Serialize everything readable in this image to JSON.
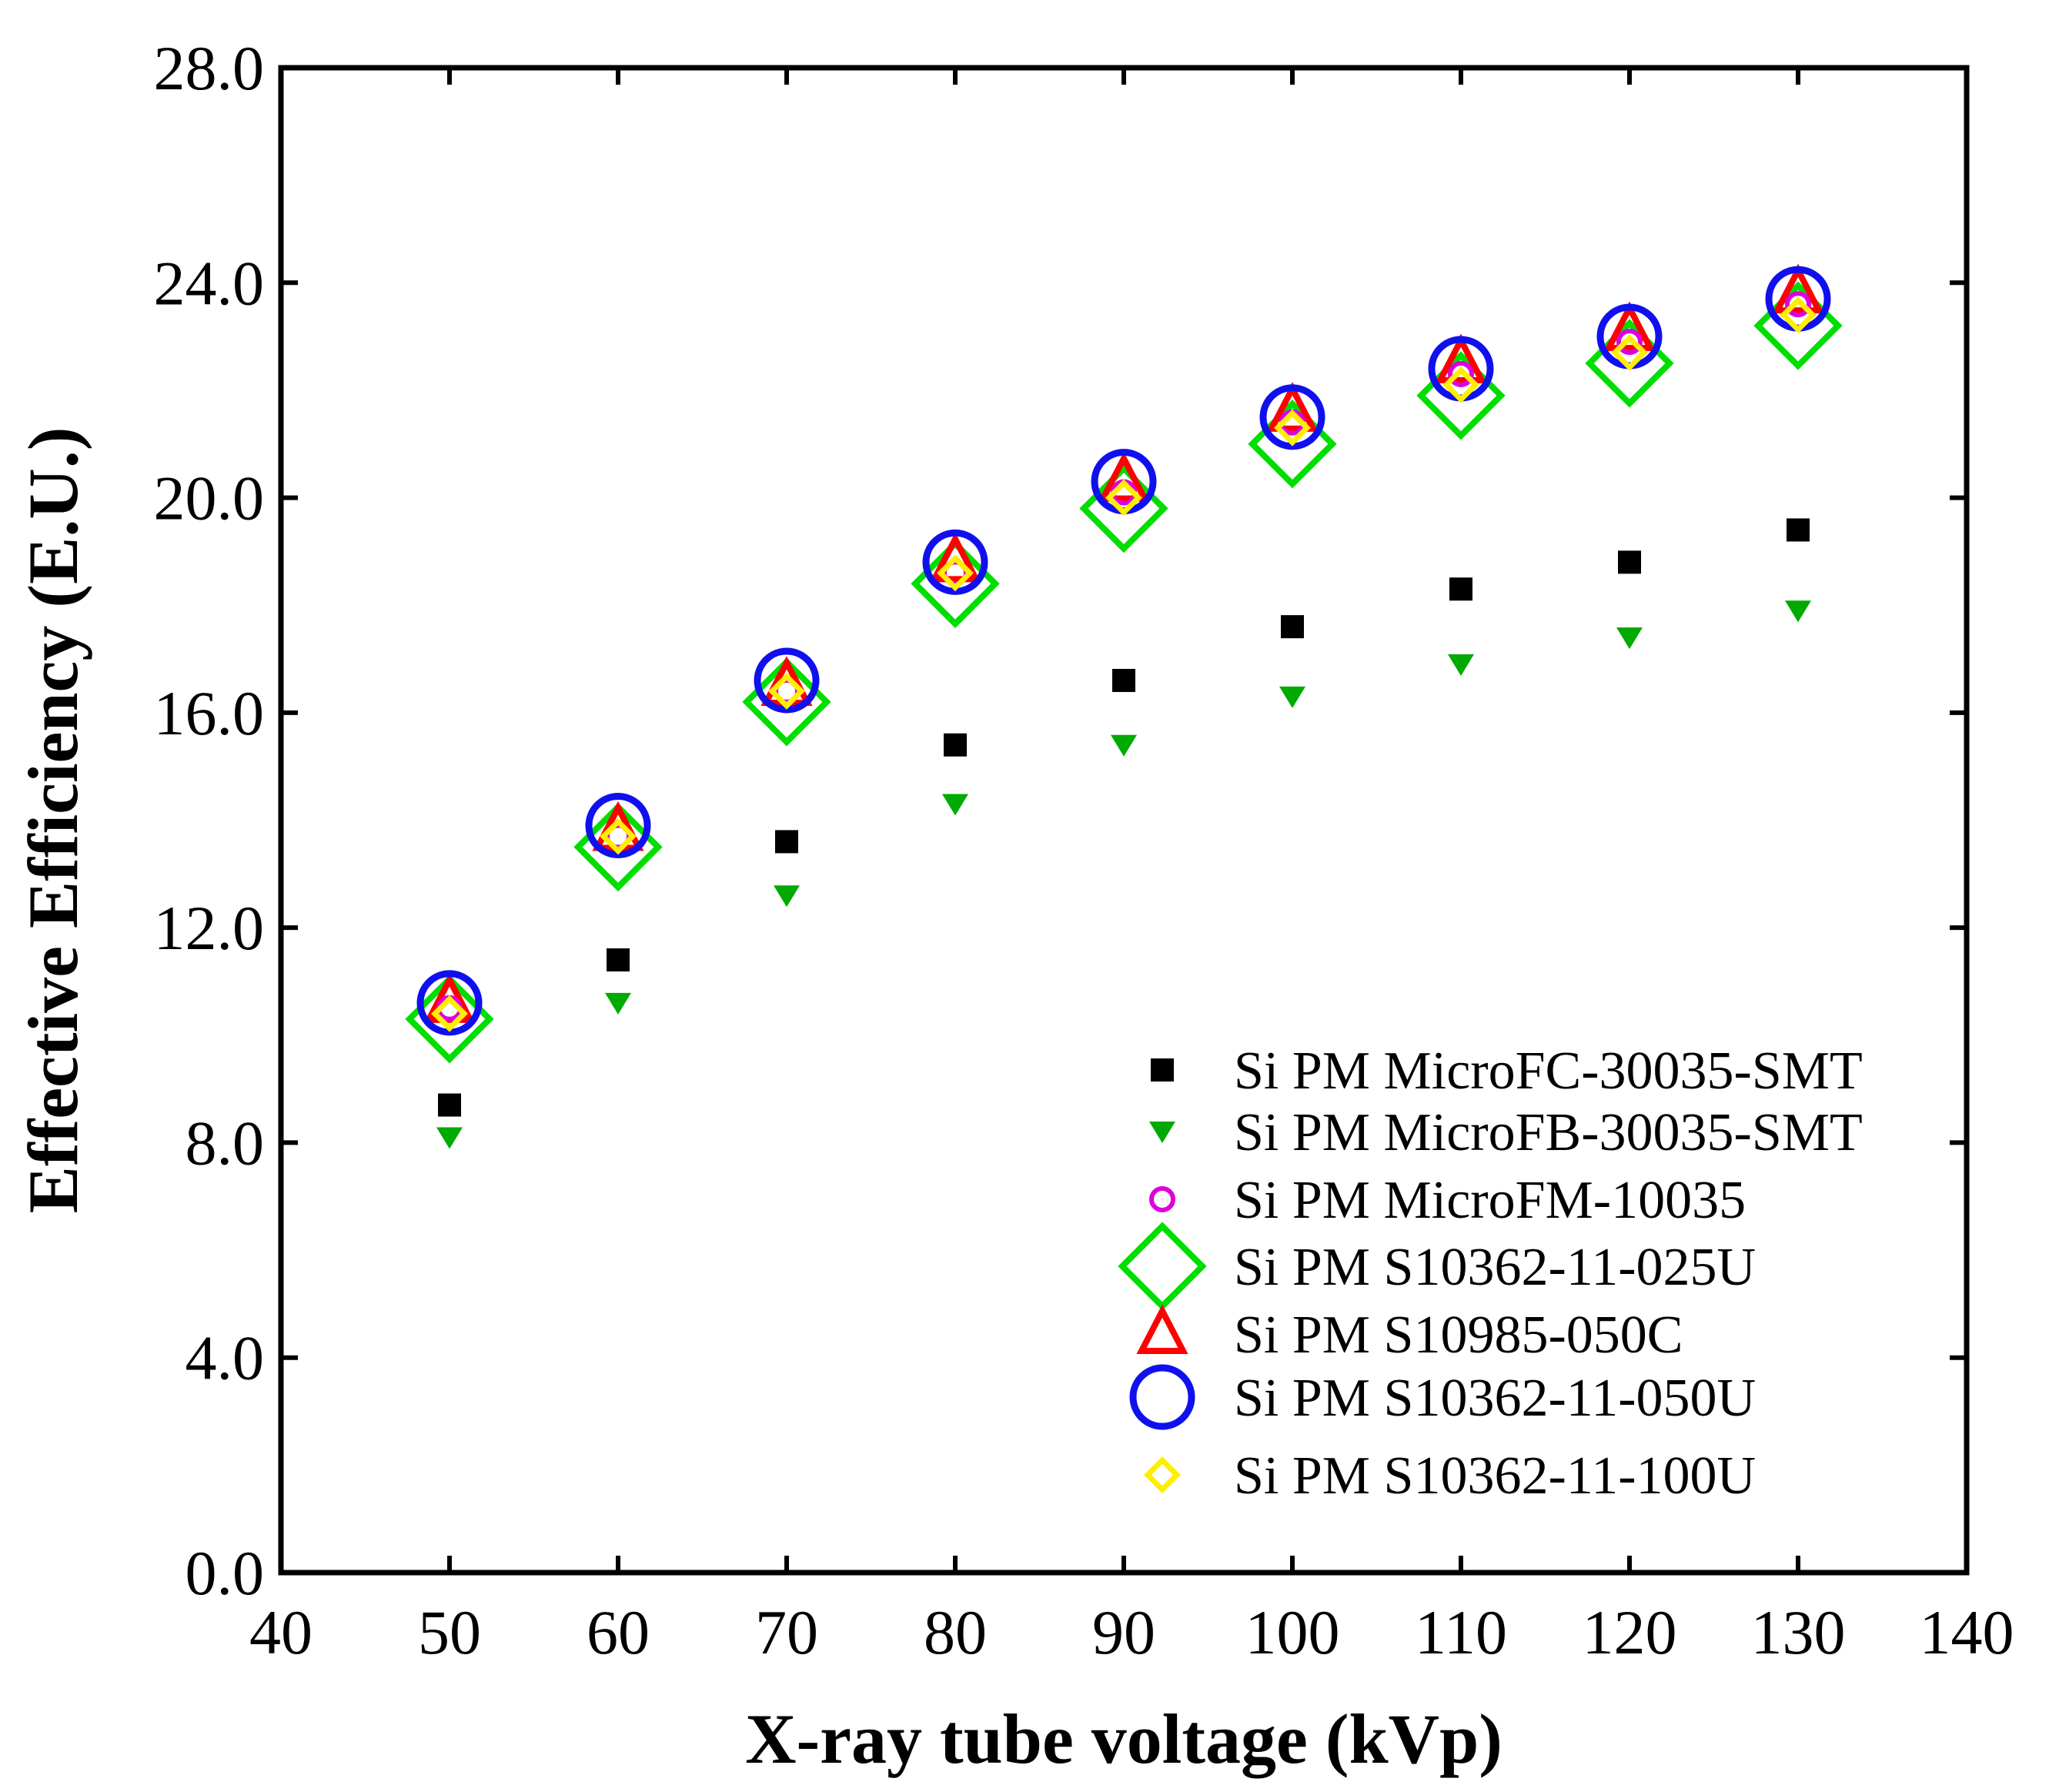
{
  "chart_data": {
    "type": "scatter",
    "title": "",
    "xlabel": "X-ray tube voltage (kVp)",
    "ylabel": "Effective Efficiency (E.U.)",
    "xlim": [
      40,
      140
    ],
    "ylim": [
      0,
      28
    ],
    "xticks": [
      40,
      50,
      60,
      70,
      80,
      90,
      100,
      110,
      120,
      130,
      140
    ],
    "yticks": [
      0,
      4,
      8,
      12,
      16,
      20,
      24,
      28
    ],
    "xtick_labels": [
      "40",
      "50",
      "60",
      "70",
      "80",
      "90",
      "100",
      "110",
      "120",
      "130",
      "140"
    ],
    "ytick_labels": [
      "0.0",
      "4.0",
      "8.0",
      "12.0",
      "16.0",
      "20.0",
      "24.0",
      "28.0"
    ],
    "grid": false,
    "legend_position": "bottom-right",
    "x": [
      50,
      60,
      70,
      80,
      90,
      100,
      110,
      120,
      130
    ],
    "series": [
      {
        "name": "Si PM MicroFC-30035-SMT",
        "marker": "square-filled",
        "color": "#000000",
        "values": [
          8.7,
          11.4,
          13.6,
          15.4,
          16.6,
          17.6,
          18.3,
          18.8,
          19.4
        ]
      },
      {
        "name": "Si PM MicroFB-30035-SMT",
        "marker": "triangle-down-filled",
        "color": "#00aa00",
        "values": [
          8.1,
          10.6,
          12.6,
          14.3,
          15.4,
          16.3,
          16.9,
          17.4,
          17.9
        ]
      },
      {
        "name": "Si PM MicroFM-10035",
        "marker": "circle-small-open",
        "color": "#dd00dd",
        "values": [
          10.5,
          13.7,
          16.4,
          18.6,
          20.1,
          21.4,
          22.3,
          22.9,
          23.6
        ]
      },
      {
        "name": "Si PM S10362-11-025U",
        "marker": "diamond-large-open",
        "color": "#00dd00",
        "values": [
          10.3,
          13.5,
          16.2,
          18.4,
          19.8,
          21.0,
          21.9,
          22.5,
          23.2
        ]
      },
      {
        "name": "Si PM S10985-050C",
        "marker": "triangle-up-open",
        "color": "#ff0000",
        "values": [
          10.6,
          13.8,
          16.5,
          18.8,
          20.3,
          21.6,
          22.5,
          23.1,
          23.8
        ]
      },
      {
        "name": "Si PM S10362-11-050U",
        "marker": "circle-large-open",
        "color": "#1010ee",
        "values": [
          10.6,
          13.9,
          16.6,
          18.8,
          20.3,
          21.5,
          22.4,
          23.0,
          23.7
        ]
      },
      {
        "name": "Si PM S10362-11-100U",
        "marker": "diamond-small-open",
        "color": "#ffee00",
        "values": [
          10.4,
          13.7,
          16.4,
          18.6,
          20.0,
          21.3,
          22.1,
          22.7,
          23.4
        ]
      }
    ]
  }
}
